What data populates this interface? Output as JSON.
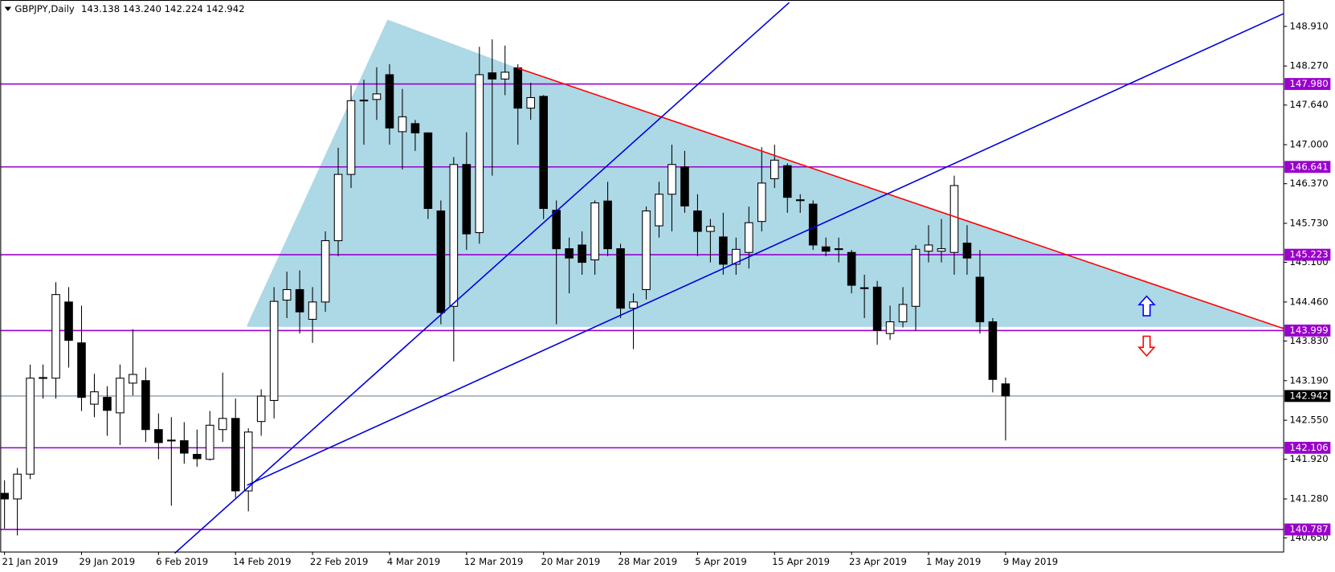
{
  "chart_data": {
    "type": "candlestick",
    "title": "GBPJPY,Daily",
    "subtitle": "143.138 143.240 142.224 142.942",
    "categories": [
      "21 Jan 2019",
      null,
      null,
      null,
      null,
      null,
      "29 Jan 2019",
      null,
      null,
      null,
      null,
      null,
      "6 Feb 2019",
      null,
      null,
      null,
      null,
      null,
      "14 Feb 2019",
      null,
      null,
      null,
      null,
      null,
      "22 Feb 2019",
      null,
      null,
      null,
      null,
      null,
      "4 Mar 2019",
      null,
      null,
      null,
      null,
      null,
      "12 Mar 2019",
      null,
      null,
      null,
      null,
      null,
      "20 Mar 2019",
      null,
      null,
      null,
      null,
      null,
      "28 Mar 2019",
      null,
      null,
      null,
      null,
      null,
      "5 Apr 2019",
      null,
      null,
      null,
      null,
      null,
      "15 Apr 2019",
      null,
      null,
      null,
      null,
      null,
      "23 Apr 2019",
      null,
      null,
      null,
      null,
      null,
      "1 May 2019",
      null,
      null,
      null,
      null,
      null,
      "9 May 2019"
    ],
    "open": [
      141.37,
      141.28,
      141.68,
      143.23,
      143.23,
      144.46,
      143.8,
      142.81,
      142.92,
      142.67,
      143.15,
      143.19,
      142.4,
      142.23,
      142.22,
      142.0,
      141.92,
      142.4,
      142.58,
      141.41,
      142.53,
      142.87,
      144.49,
      144.66,
      144.18,
      144.46,
      145.45,
      146.52,
      147.71,
      147.73,
      148.13,
      147.21,
      147.34,
      147.19,
      145.93,
      144.39,
      146.68,
      145.58,
      148.16,
      148.06,
      148.24,
      147.59,
      147.78,
      145.94,
      145.32,
      145.38,
      145.14,
      146.09,
      145.32,
      144.36,
      144.66,
      145.69,
      146.2,
      146.64,
      145.93,
      145.6,
      145.51,
      145.07,
      145.26,
      145.76,
      146.45,
      146.66,
      146.11,
      146.04,
      145.35,
      145.32,
      145.26,
      144.69,
      144.7,
      143.95,
      144.14,
      144.39,
      145.28,
      145.28,
      145.26,
      145.41,
      144.86,
      144.14,
      143.138
    ],
    "high": [
      141.58,
      141.78,
      143.45,
      143.45,
      144.78,
      144.7,
      144.4,
      143.3,
      143.1,
      143.45,
      144.02,
      143.4,
      142.66,
      142.6,
      142.52,
      142.4,
      142.7,
      143.32,
      142.9,
      142.42,
      143.05,
      144.7,
      144.95,
      144.97,
      144.7,
      145.6,
      146.95,
      147.96,
      148.05,
      148.25,
      148.3,
      147.9,
      147.4,
      147.2,
      146.1,
      146.8,
      147.2,
      148.58,
      148.7,
      148.6,
      148.3,
      148.0,
      147.8,
      146.1,
      145.5,
      145.6,
      146.1,
      146.4,
      145.4,
      144.6,
      146.0,
      146.4,
      147.0,
      146.9,
      146.2,
      145.8,
      145.9,
      145.5,
      146.0,
      146.96,
      147.0,
      146.7,
      146.2,
      146.1,
      145.5,
      145.5,
      145.3,
      144.9,
      144.8,
      144.4,
      144.7,
      145.38,
      145.7,
      145.8,
      146.5,
      145.7,
      145.3,
      144.2,
      143.24
    ],
    "low": [
      140.8,
      140.69,
      141.6,
      142.9,
      142.9,
      143.4,
      142.7,
      142.6,
      142.3,
      142.15,
      142.95,
      142.2,
      141.92,
      141.17,
      141.85,
      141.8,
      141.9,
      142.2,
      141.3,
      141.08,
      142.3,
      142.58,
      144.2,
      143.95,
      143.8,
      144.3,
      145.2,
      146.3,
      147.0,
      147.4,
      147.0,
      146.6,
      146.9,
      145.8,
      144.1,
      143.5,
      145.3,
      145.4,
      146.5,
      147.8,
      147.0,
      147.4,
      145.8,
      144.1,
      144.6,
      144.9,
      144.9,
      145.2,
      144.2,
      143.7,
      144.5,
      145.5,
      145.6,
      145.9,
      145.2,
      145.1,
      144.9,
      144.9,
      145.0,
      145.6,
      146.3,
      145.9,
      145.9,
      145.3,
      145.2,
      145.1,
      144.6,
      144.2,
      143.77,
      143.85,
      144.05,
      144.0,
      145.1,
      145.1,
      144.9,
      144.9,
      143.95,
      143.0,
      142.224
    ],
    "close": [
      141.28,
      141.68,
      143.23,
      143.24,
      144.58,
      143.84,
      142.92,
      143.01,
      142.71,
      143.23,
      143.29,
      142.4,
      142.19,
      142.22,
      142.02,
      141.93,
      142.47,
      142.58,
      141.41,
      142.36,
      142.94,
      144.47,
      144.66,
      144.3,
      144.46,
      145.45,
      146.52,
      147.71,
      147.72,
      147.82,
      147.27,
      147.45,
      147.19,
      145.97,
      144.29,
      146.68,
      145.56,
      148.13,
      148.06,
      148.17,
      147.59,
      147.76,
      145.97,
      145.32,
      145.17,
      145.1,
      146.06,
      145.32,
      144.36,
      144.46,
      145.93,
      146.2,
      146.68,
      146.01,
      145.6,
      145.68,
      145.07,
      145.31,
      145.74,
      146.38,
      146.75,
      146.15,
      146.1,
      145.38,
      145.28,
      145.32,
      144.73,
      144.69,
      144.0,
      144.14,
      144.42,
      145.31,
      145.38,
      145.32,
      146.34,
      145.17,
      144.14,
      143.21,
      142.942
    ],
    "up_color": "#ffffff",
    "down_color": "#000000",
    "ylim": [
      140.43,
      149.336
    ],
    "yticks": [
      {
        "value": 148.91,
        "label": "148.910"
      },
      {
        "value": 148.27,
        "label": "148.270"
      },
      {
        "value": 147.64,
        "label": "147.640"
      },
      {
        "value": 147.0,
        "label": "147.000"
      },
      {
        "value": 146.37,
        "label": "146.370"
      },
      {
        "value": 145.73,
        "label": "145.730"
      },
      {
        "value": 145.1,
        "label": "145.100"
      },
      {
        "value": 144.46,
        "label": "144.460"
      },
      {
        "value": 143.83,
        "label": "143.830"
      },
      {
        "value": 143.19,
        "label": "143.190"
      },
      {
        "value": 142.55,
        "label": "142.550"
      },
      {
        "value": 141.92,
        "label": "141.920"
      },
      {
        "value": 141.28,
        "label": "141.280"
      },
      {
        "value": 140.65,
        "label": "140.650"
      }
    ],
    "levels": [
      {
        "value": 147.98,
        "label": "147.980"
      },
      146.641,
      145.223,
      143.999,
      142.106,
      140.787
    ],
    "level_color": "#9900cc",
    "last_price": 142.942,
    "last_price_color": "#778899"
  }
}
